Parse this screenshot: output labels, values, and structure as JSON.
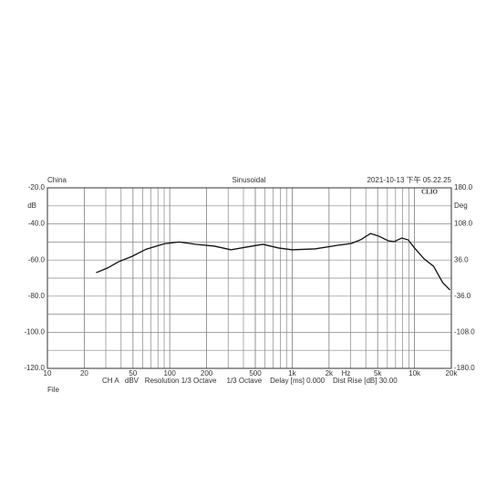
{
  "chart_data": {
    "type": "line",
    "header_left": "China",
    "title": "Sinusoidal",
    "header_right": "2021-10-13 下午 05.22.25",
    "brand": "CLIO",
    "ylabel": "dB",
    "y2label": "Deg",
    "xlabel": "Hz",
    "footer": "CH A   dBV   Resolution 1/3 Octave     1/3 Octave    Delay [ms] 0.000    Dist Rise [dB] 30.00",
    "file_label": "File",
    "log_x": true,
    "grid": true,
    "xlim": [
      10,
      20000
    ],
    "xticks": [
      10,
      20,
      50,
      100,
      200,
      500,
      {
        "value": 1000,
        "label": "1k"
      },
      {
        "value": 2000,
        "label": "2k"
      },
      {
        "value": 5000,
        "label": "5k"
      },
      {
        "value": 10000,
        "label": "10k"
      },
      {
        "value": 20000,
        "label": "20k"
      }
    ],
    "ylim": [
      -120,
      -20
    ],
    "yticks": [
      {
        "value": -20,
        "label": "-20.0"
      },
      {
        "value": -40,
        "label": "-40.0"
      },
      {
        "value": -60,
        "label": "-60.0"
      },
      {
        "value": -80,
        "label": "-80.0"
      },
      {
        "value": -100,
        "label": "-100.0"
      },
      {
        "value": -120,
        "label": "-120.0"
      }
    ],
    "y2lim": [
      -180,
      180
    ],
    "y2ticks": [
      {
        "value": 180,
        "label": "180.0"
      },
      {
        "value": 108,
        "label": "108.0"
      },
      {
        "value": 36,
        "label": "36.0"
      },
      {
        "value": -36,
        "label": "-36.0"
      },
      {
        "value": -108,
        "label": "-108.0"
      },
      {
        "value": -180,
        "label": "-180.0"
      }
    ],
    "series": [
      {
        "color": "#111111",
        "x": [
          25,
          31,
          38,
          49,
          64,
          90,
          119,
          165,
          232,
          316,
          424,
          577,
          773,
          1000,
          1540,
          2360,
          3050,
          3620,
          4370,
          5130,
          6070,
          6850,
          7850,
          8870,
          10000,
          12000,
          14300,
          17000,
          19500
        ],
        "values": [
          -67,
          -64.4,
          -61,
          -58,
          -54,
          -51,
          -50,
          -51.3,
          -52.3,
          -54.3,
          -52.8,
          -51.3,
          -53.3,
          -54.3,
          -53.8,
          -51.8,
          -50.8,
          -48.8,
          -45.3,
          -46.8,
          -49.3,
          -49.8,
          -47.8,
          -48.8,
          -53.3,
          -59.4,
          -63.4,
          -72.5,
          -76.6
        ]
      }
    ]
  }
}
